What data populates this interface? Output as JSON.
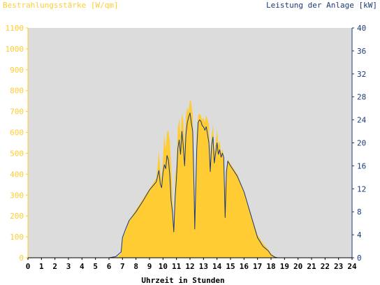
{
  "chart_data": {
    "type": "area",
    "title": "",
    "left_axis": {
      "label": "Bestrahlungsstärke [W/qm]",
      "min": 0,
      "max": 1100,
      "step": 100,
      "color": "#ffcc33"
    },
    "right_axis": {
      "label": "Leistung der Anlage [kW]",
      "min": 0,
      "max": 40,
      "step": 4,
      "color": "#1a3a7a"
    },
    "x_axis": {
      "label": "Uhrzeit in Stunden",
      "min": 0,
      "max": 24,
      "step": 1
    },
    "background": "#dcdcdc",
    "grid": false,
    "series": [
      {
        "kind": "area",
        "axis": "left",
        "color": "#ffcc33",
        "points": [
          [
            0,
            0
          ],
          [
            6.0,
            0
          ],
          [
            6.4,
            2
          ],
          [
            6.7,
            8
          ],
          [
            6.9,
            20
          ],
          [
            7.0,
            90
          ],
          [
            7.3,
            140
          ],
          [
            7.6,
            190
          ],
          [
            8.0,
            230
          ],
          [
            8.5,
            280
          ],
          [
            9.0,
            330
          ],
          [
            9.3,
            360
          ],
          [
            9.5,
            380
          ],
          [
            9.6,
            440
          ],
          [
            9.7,
            510
          ],
          [
            9.8,
            420
          ],
          [
            9.9,
            370
          ],
          [
            10.0,
            480
          ],
          [
            10.1,
            590
          ],
          [
            10.2,
            520
          ],
          [
            10.3,
            600
          ],
          [
            10.4,
            610
          ],
          [
            10.5,
            560
          ],
          [
            10.6,
            450
          ],
          [
            10.7,
            300
          ],
          [
            10.8,
            120
          ],
          [
            10.9,
            380
          ],
          [
            11.0,
            450
          ],
          [
            11.1,
            620
          ],
          [
            11.2,
            670
          ],
          [
            11.3,
            580
          ],
          [
            11.4,
            690
          ],
          [
            11.5,
            660
          ],
          [
            11.6,
            540
          ],
          [
            11.7,
            680
          ],
          [
            11.8,
            720
          ],
          [
            11.9,
            700
          ],
          [
            12.0,
            760
          ],
          [
            12.1,
            740
          ],
          [
            12.2,
            680
          ],
          [
            12.3,
            400
          ],
          [
            12.35,
            140
          ],
          [
            12.4,
            320
          ],
          [
            12.5,
            600
          ],
          [
            12.6,
            680
          ],
          [
            12.7,
            690
          ],
          [
            12.8,
            680
          ],
          [
            12.9,
            660
          ],
          [
            13.0,
            670
          ],
          [
            13.1,
            650
          ],
          [
            13.2,
            680
          ],
          [
            13.3,
            660
          ],
          [
            13.4,
            640
          ],
          [
            13.5,
            450
          ],
          [
            13.6,
            580
          ],
          [
            13.7,
            640
          ],
          [
            13.8,
            500
          ],
          [
            14.0,
            610
          ],
          [
            14.1,
            540
          ],
          [
            14.2,
            560
          ],
          [
            14.3,
            500
          ],
          [
            14.4,
            520
          ],
          [
            14.5,
            490
          ],
          [
            14.6,
            320
          ],
          [
            14.7,
            430
          ],
          [
            14.8,
            470
          ],
          [
            15.0,
            450
          ],
          [
            15.5,
            400
          ],
          [
            16.0,
            320
          ],
          [
            16.5,
            210
          ],
          [
            17.0,
            110
          ],
          [
            17.4,
            70
          ],
          [
            17.8,
            40
          ],
          [
            18.0,
            20
          ],
          [
            18.3,
            5
          ],
          [
            18.5,
            0
          ],
          [
            24,
            0
          ]
        ]
      },
      {
        "kind": "line",
        "axis": "right",
        "color": "#1a3a7a",
        "points": [
          [
            0,
            0
          ],
          [
            6.0,
            0
          ],
          [
            6.5,
            0.2
          ],
          [
            6.9,
            1.0
          ],
          [
            7.0,
            3.5
          ],
          [
            7.2,
            4.8
          ],
          [
            7.5,
            6.5
          ],
          [
            8.0,
            8.0
          ],
          [
            8.5,
            9.8
          ],
          [
            9.0,
            11.8
          ],
          [
            9.5,
            13.2
          ],
          [
            9.6,
            14.2
          ],
          [
            9.7,
            15.2
          ],
          [
            9.8,
            12.8
          ],
          [
            9.9,
            12.2
          ],
          [
            10.0,
            14.8
          ],
          [
            10.1,
            16.2
          ],
          [
            10.2,
            15.5
          ],
          [
            10.3,
            17.8
          ],
          [
            10.4,
            17.0
          ],
          [
            10.5,
            14.5
          ],
          [
            10.6,
            10.0
          ],
          [
            10.7,
            8.0
          ],
          [
            10.8,
            4.5
          ],
          [
            10.9,
            10.5
          ],
          [
            11.0,
            14.0
          ],
          [
            11.1,
            19.0
          ],
          [
            11.2,
            20.5
          ],
          [
            11.3,
            18.0
          ],
          [
            11.4,
            22.0
          ],
          [
            11.5,
            19.5
          ],
          [
            11.6,
            16.0
          ],
          [
            11.7,
            21.5
          ],
          [
            11.8,
            23.5
          ],
          [
            11.9,
            24.5
          ],
          [
            12.0,
            25.2
          ],
          [
            12.1,
            23.5
          ],
          [
            12.2,
            22.0
          ],
          [
            12.3,
            12.0
          ],
          [
            12.35,
            5.0
          ],
          [
            12.4,
            9.5
          ],
          [
            12.5,
            19.0
          ],
          [
            12.6,
            23.5
          ],
          [
            12.7,
            24.0
          ],
          [
            12.8,
            23.8
          ],
          [
            12.9,
            23.0
          ],
          [
            13.0,
            22.8
          ],
          [
            13.1,
            22.2
          ],
          [
            13.2,
            22.8
          ],
          [
            13.3,
            21.5
          ],
          [
            13.4,
            20.0
          ],
          [
            13.5,
            15.0
          ],
          [
            13.6,
            19.5
          ],
          [
            13.7,
            21.0
          ],
          [
            13.8,
            16.5
          ],
          [
            14.0,
            20.0
          ],
          [
            14.1,
            18.0
          ],
          [
            14.2,
            18.8
          ],
          [
            14.3,
            17.5
          ],
          [
            14.4,
            18.2
          ],
          [
            14.5,
            17.5
          ],
          [
            14.6,
            7.0
          ],
          [
            14.7,
            15.0
          ],
          [
            14.8,
            16.8
          ],
          [
            15.0,
            16.0
          ],
          [
            15.5,
            14.2
          ],
          [
            16.0,
            11.5
          ],
          [
            16.5,
            7.5
          ],
          [
            17.0,
            3.5
          ],
          [
            17.4,
            2.0
          ],
          [
            17.8,
            1.2
          ],
          [
            18.0,
            0.5
          ],
          [
            18.3,
            0.1
          ],
          [
            18.5,
            0
          ],
          [
            24,
            0
          ]
        ]
      }
    ]
  }
}
